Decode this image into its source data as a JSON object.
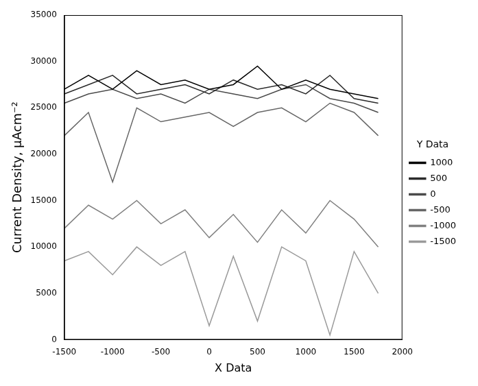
{
  "chart_data": {
    "type": "line",
    "xlabel": "X Data",
    "ylabel": "Current Density, µAcm⁻²",
    "legend_title": "Y Data",
    "legend": "right",
    "grid": false,
    "marker": "none",
    "line_style": "solid",
    "xlim": [
      -1500,
      2000
    ],
    "xticks": [
      -1500,
      -1000,
      -500,
      0,
      500,
      1000,
      1500,
      2000
    ],
    "ylim": [
      0,
      35000
    ],
    "yticks": [
      0,
      5000,
      10000,
      15000,
      20000,
      25000,
      30000,
      35000
    ],
    "x": [
      -1500,
      -1250,
      -1000,
      -750,
      -500,
      -250,
      0,
      250,
      500,
      750,
      1000,
      1250,
      1500,
      1750
    ],
    "series": [
      {
        "name": "1000",
        "color": "#000000",
        "values": [
          27000,
          28500,
          27000,
          29000,
          27500,
          28000,
          27000,
          27500,
          29500,
          27000,
          28000,
          27000,
          26500,
          26000
        ]
      },
      {
        "name": "500",
        "color": "#2a2a2a",
        "values": [
          26500,
          27500,
          28500,
          26500,
          27000,
          27500,
          26500,
          28000,
          27000,
          27500,
          26500,
          28500,
          26000,
          25500
        ]
      },
      {
        "name": "0",
        "color": "#4a4a4a",
        "values": [
          25500,
          26500,
          27000,
          26000,
          26500,
          25500,
          27000,
          26500,
          26000,
          27000,
          27500,
          26000,
          25500,
          24500
        ]
      },
      {
        "name": "-500",
        "color": "#666666",
        "values": [
          22000,
          24500,
          17000,
          25000,
          23500,
          24000,
          24500,
          23000,
          24500,
          25000,
          23500,
          25500,
          24500,
          22000
        ]
      },
      {
        "name": "-1000",
        "color": "#808080",
        "values": [
          12000,
          14500,
          13000,
          15000,
          12500,
          14000,
          11000,
          13500,
          10500,
          14000,
          11500,
          15000,
          13000,
          10000
        ]
      },
      {
        "name": "-1500",
        "color": "#9a9a9a",
        "values": [
          8500,
          9500,
          7000,
          10000,
          8000,
          9500,
          1500,
          9000,
          2000,
          10000,
          8500,
          500,
          9500,
          5000
        ]
      }
    ]
  }
}
